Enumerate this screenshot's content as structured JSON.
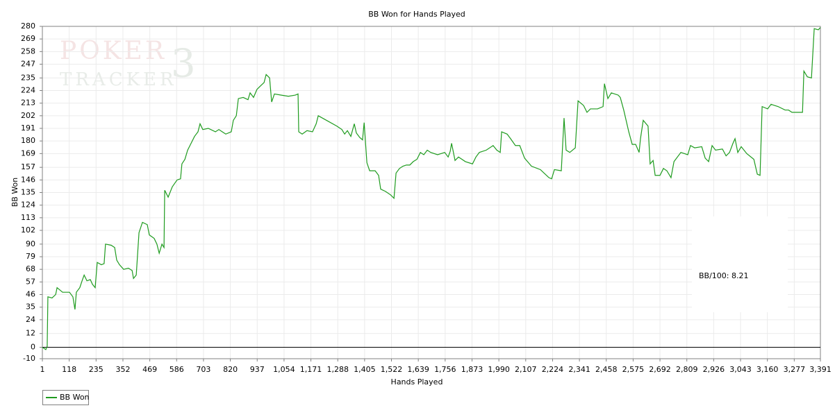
{
  "chart_data": {
    "type": "line",
    "title": "BB Won for Hands Played",
    "x_label": "Hands Played",
    "y_label": "BB Won",
    "annotation": "BB/100: 8.21",
    "watermark": [
      "POKER",
      "TRACKER",
      "3"
    ],
    "legend": "bottom-left",
    "grid": true,
    "xlim": [
      1,
      3391
    ],
    "ylim": [
      -10,
      280
    ],
    "xticks": [
      1,
      118,
      235,
      352,
      469,
      586,
      703,
      820,
      937,
      {
        "value": 1054,
        "label": "1,054"
      },
      {
        "value": 1171,
        "label": "1,171"
      },
      {
        "value": 1288,
        "label": "1,288"
      },
      {
        "value": 1405,
        "label": "1,405"
      },
      {
        "value": 1522,
        "label": "1,522"
      },
      {
        "value": 1639,
        "label": "1,639"
      },
      {
        "value": 1756,
        "label": "1,756"
      },
      {
        "value": 1873,
        "label": "1,873"
      },
      {
        "value": 1990,
        "label": "1,990"
      },
      {
        "value": 2107,
        "label": "2,107"
      },
      {
        "value": 2224,
        "label": "2,224"
      },
      {
        "value": 2341,
        "label": "2,341"
      },
      {
        "value": 2458,
        "label": "2,458"
      },
      {
        "value": 2575,
        "label": "2,575"
      },
      {
        "value": 2692,
        "label": "2,692"
      },
      {
        "value": 2809,
        "label": "2,809"
      },
      {
        "value": 2926,
        "label": "2,926"
      },
      {
        "value": 3043,
        "label": "3,043"
      },
      {
        "value": 3160,
        "label": "3,160"
      },
      {
        "value": 3277,
        "label": "3,277"
      },
      {
        "value": 3391,
        "label": "3,391"
      }
    ],
    "yticks": [
      -10,
      0,
      12,
      24,
      35,
      46,
      57,
      68,
      79,
      90,
      102,
      113,
      124,
      135,
      146,
      157,
      169,
      180,
      191,
      202,
      213,
      224,
      235,
      247,
      258,
      269,
      280
    ],
    "x": [
      1,
      16,
      22,
      25,
      43,
      59,
      65,
      89,
      119,
      134,
      143,
      149,
      164,
      174,
      183,
      195,
      210,
      219,
      231,
      240,
      258,
      270,
      276,
      301,
      316,
      325,
      337,
      355,
      376,
      392,
      398,
      410,
      422,
      437,
      458,
      467,
      488,
      500,
      510,
      522,
      531,
      534,
      549,
      567,
      588,
      603,
      609,
      622,
      634,
      649,
      664,
      679,
      688,
      700,
      724,
      755,
      770,
      785,
      800,
      824,
      833,
      846,
      855,
      876,
      897,
      906,
      921,
      936,
      951,
      967,
      976,
      991,
      1000,
      1012,
      1042,
      1073,
      1103,
      1115,
      1118,
      1133,
      1154,
      1178,
      1194,
      1203,
      1239,
      1284,
      1306,
      1318,
      1330,
      1345,
      1360,
      1369,
      1384,
      1396,
      1403,
      1415,
      1427,
      1451,
      1466,
      1475,
      1496,
      1518,
      1533,
      1542,
      1557,
      1572,
      1587,
      1602,
      1617,
      1633,
      1648,
      1663,
      1678,
      1693,
      1723,
      1754,
      1769,
      1778,
      1784,
      1799,
      1814,
      1844,
      1875,
      1890,
      1905,
      1935,
      1965,
      1981,
      1996,
      2002,
      2026,
      2041,
      2062,
      2081,
      2102,
      2132,
      2171,
      2208,
      2220,
      2232,
      2262,
      2274,
      2283,
      2299,
      2323,
      2335,
      2359,
      2374,
      2389,
      2420,
      2444,
      2450,
      2465,
      2480,
      2510,
      2519,
      2534,
      2556,
      2571,
      2586,
      2601,
      2607,
      2619,
      2640,
      2649,
      2662,
      2671,
      2692,
      2707,
      2722,
      2740,
      2753,
      2783,
      2813,
      2825,
      2843,
      2874,
      2889,
      2904,
      2919,
      2934,
      2964,
      2980,
      2995,
      3010,
      3019,
      3031,
      3046,
      3070,
      3101,
      3116,
      3128,
      3137,
      3161,
      3176,
      3207,
      3237,
      3252,
      3267,
      3313,
      3319,
      3334,
      3352,
      3364,
      3382,
      3391
    ],
    "series": [
      {
        "name": "BB Won",
        "color": "#1e9b1e",
        "values": [
          0,
          -2,
          1,
          44,
          43,
          46,
          52,
          48,
          48,
          44,
          33,
          48,
          52,
          58,
          63,
          58,
          59,
          55,
          52,
          74,
          72,
          73,
          90,
          89,
          87,
          76,
          72,
          68,
          69,
          67,
          60,
          63,
          100,
          109,
          107,
          98,
          95,
          90,
          82,
          90,
          87,
          137,
          131,
          140,
          146,
          147,
          160,
          164,
          172,
          178,
          184,
          188,
          195,
          190,
          191,
          188,
          190,
          188,
          186,
          188,
          198,
          202,
          217,
          218,
          216,
          222,
          218,
          225,
          228,
          231,
          238,
          235,
          214,
          221,
          220,
          219,
          220,
          221,
          188,
          186,
          189,
          188,
          195,
          202,
          198,
          193,
          190,
          186,
          189,
          184,
          195,
          187,
          183,
          181,
          196,
          161,
          154,
          154,
          150,
          138,
          136,
          133,
          130,
          152,
          156,
          158,
          159,
          159,
          162,
          164,
          170,
          168,
          172,
          170,
          168,
          170,
          166,
          171,
          178,
          163,
          166,
          162,
          160,
          166,
          170,
          172,
          176,
          172,
          170,
          188,
          186,
          182,
          176,
          176,
          165,
          158,
          155,
          148,
          147,
          155,
          154,
          200,
          172,
          170,
          174,
          215,
          211,
          205,
          208,
          208,
          210,
          230,
          217,
          222,
          220,
          218,
          207,
          188,
          177,
          177,
          170,
          182,
          198,
          193,
          160,
          163,
          150,
          150,
          156,
          154,
          148,
          162,
          170,
          168,
          176,
          174,
          175,
          165,
          162,
          176,
          172,
          173,
          167,
          170,
          178,
          182,
          170,
          175,
          169,
          164,
          151,
          150,
          210,
          208,
          212,
          210,
          207,
          207,
          205,
          205,
          241,
          236,
          235,
          278,
          277,
          279
        ]
      }
    ]
  }
}
